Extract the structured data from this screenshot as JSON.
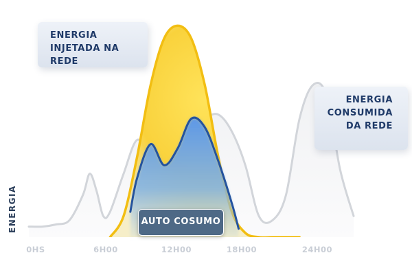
{
  "chart_data": {
    "type": "area",
    "ylabel": "ENERGIA",
    "x_ticks": [
      "0HS",
      "6H00",
      "12H00",
      "18H00",
      "24H00"
    ],
    "annotations": {
      "injected": [
        "ENERGIA",
        "INJETADA NA REDE"
      ],
      "consumed": [
        "ENERGIA",
        "CONSUMIDA",
        "DA REDE"
      ],
      "self_consumption": "AUTO COSUMO"
    },
    "series": [
      {
        "name": "ENERGIA CONSUMIDA DA REDE",
        "color": "#cfd3d9",
        "x": [
          0,
          1,
          2,
          3,
          4,
          4.5,
          5,
          5.5,
          6,
          7,
          8,
          9,
          10,
          11,
          12,
          13,
          14,
          15,
          16,
          17,
          18,
          19,
          20,
          21,
          22,
          23,
          24
        ],
        "y": [
          0.05,
          0.05,
          0.06,
          0.08,
          0.2,
          0.3,
          0.22,
          0.1,
          0.12,
          0.3,
          0.46,
          0.38,
          0.4,
          0.5,
          0.5,
          0.56,
          0.58,
          0.5,
          0.34,
          0.1,
          0.08,
          0.2,
          0.56,
          0.72,
          0.67,
          0.32,
          0.1
        ]
      },
      {
        "name": "ENERGIA INJETADA NA REDE",
        "color": "#f5c400",
        "x": [
          6,
          7,
          8,
          9,
          10,
          11,
          12,
          13,
          14,
          15,
          16,
          17,
          18,
          19,
          20
        ],
        "y": [
          0,
          0.1,
          0.38,
          0.72,
          0.94,
          1.0,
          0.94,
          0.72,
          0.38,
          0.12,
          0.02,
          0,
          0,
          0,
          0
        ]
      },
      {
        "name": "AUTO COSUMO",
        "color": "#4a86d8",
        "x": [
          7.5,
          8,
          9,
          10,
          11,
          12,
          13,
          14,
          15,
          15.5
        ],
        "y": [
          0.12,
          0.28,
          0.44,
          0.34,
          0.42,
          0.56,
          0.52,
          0.36,
          0.16,
          0.04
        ]
      }
    ],
    "xlim": [
      0,
      24
    ],
    "ylim": [
      0,
      1.05
    ],
    "grid": false,
    "legend": "none"
  }
}
